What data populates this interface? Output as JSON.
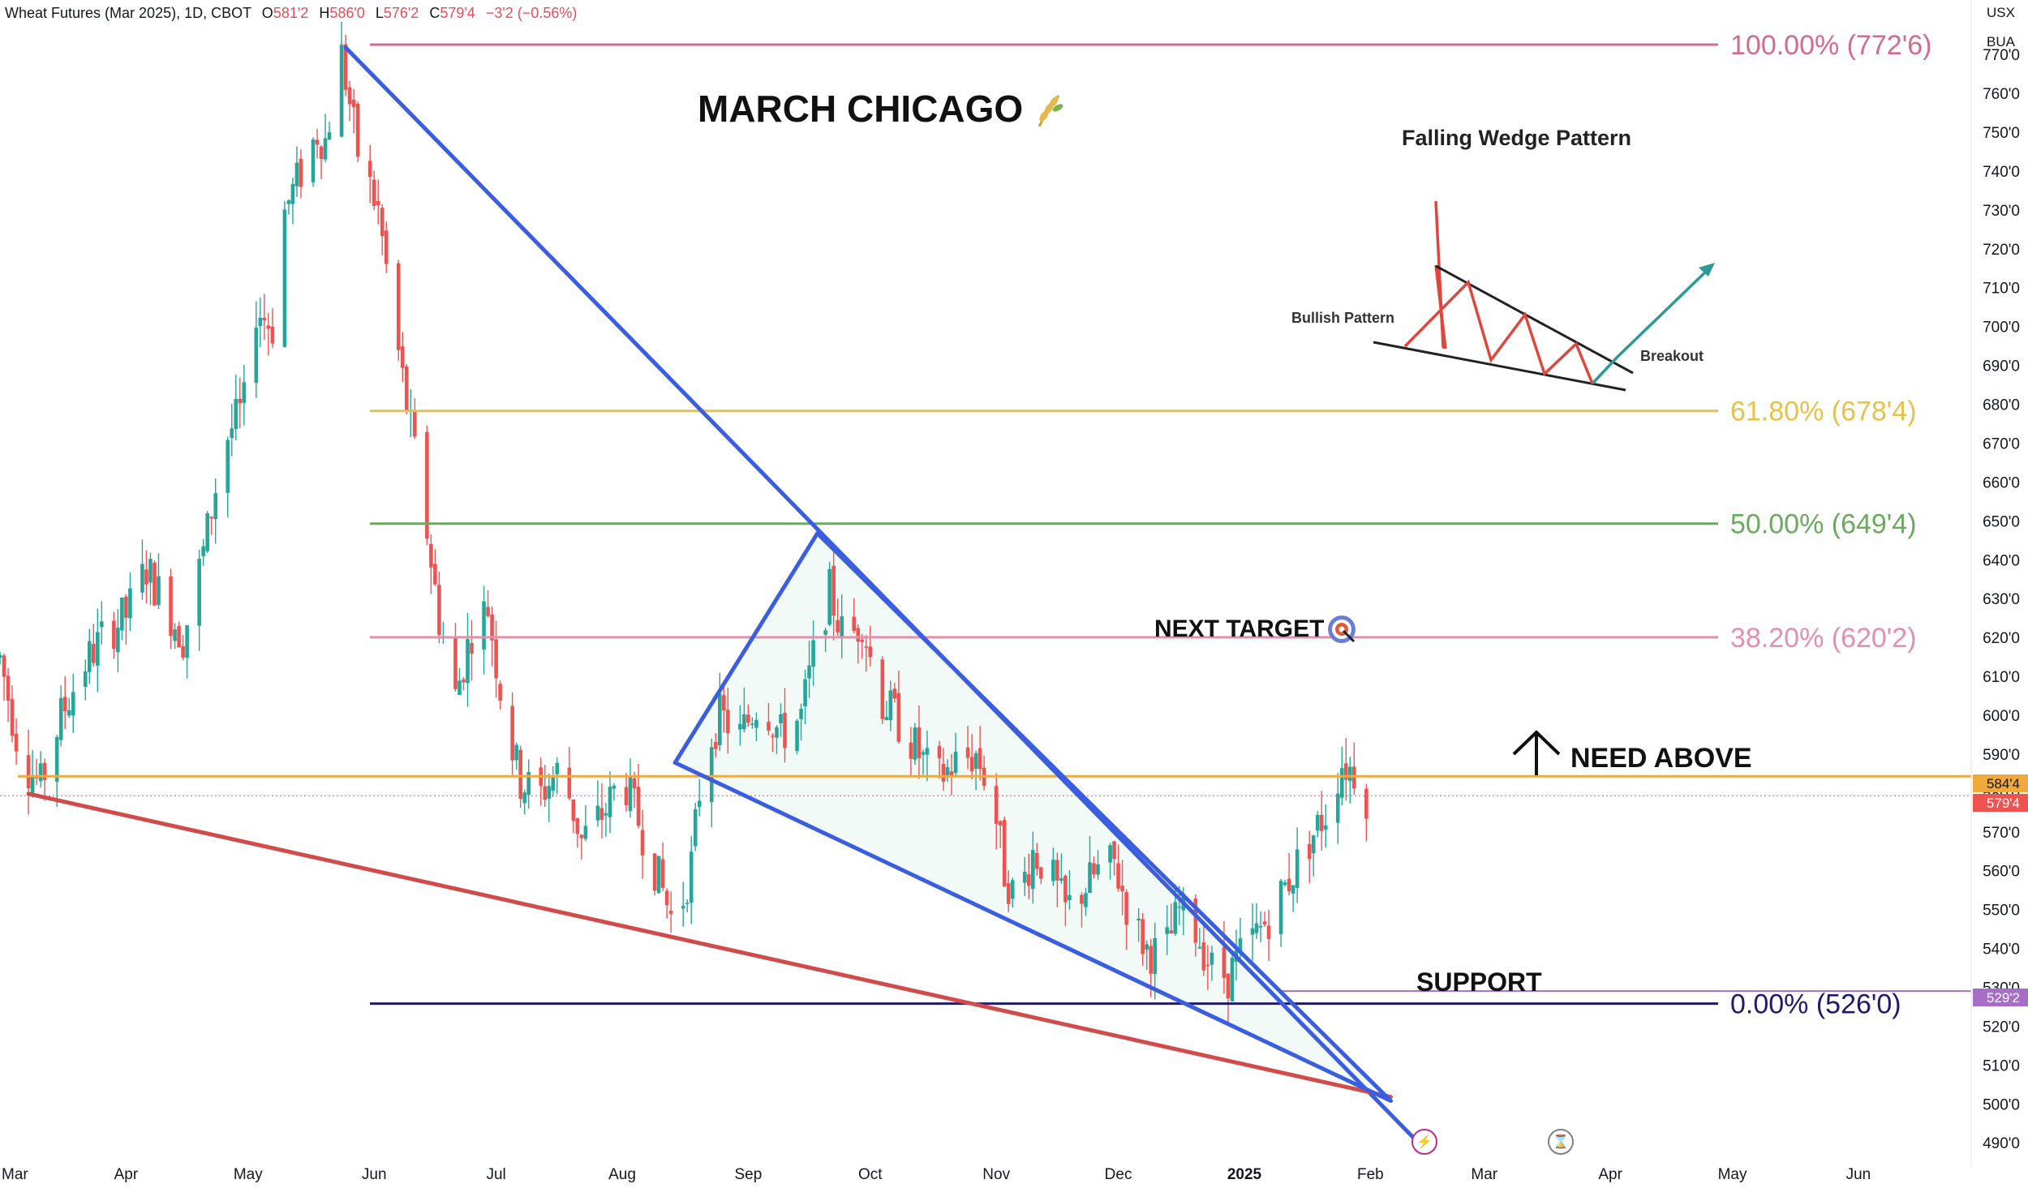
{
  "header": {
    "symbol_label": "Wheat Futures (Mar 2025), 1D, CBOT",
    "o_label": "O",
    "o_value": "581'2",
    "h_label": "H",
    "h_value": "586'0",
    "l_label": "L",
    "l_value": "576'2",
    "c_label": "C",
    "c_value": "579'4",
    "change": "−3'2 (−0.56%)"
  },
  "units": {
    "currency": "USX",
    "unit": "BUA"
  },
  "price_tags": {
    "level_tag": "584'4",
    "last_tag": "579'4",
    "support_tag": "529'2"
  },
  "annotations": {
    "title": "MARCH CHICAGO",
    "need_above": "NEED ABOVE",
    "next_target": "NEXT TARGET",
    "support": "SUPPORT",
    "inset_title": "Falling Wedge Pattern",
    "inset_bullish": "Bullish Pattern",
    "inset_breakout": "Breakout"
  },
  "colors": {
    "up": "#26a69a",
    "down": "#ef5350",
    "wedge_line": "#3b5ee0",
    "support_line": "#d24b4b",
    "fib_100": "#d46a8c",
    "fib_618": "#e6c24a",
    "fib_50": "#6aaa5e",
    "fib_382": "#e291ab",
    "fib_0": "#1f1a6b",
    "level_584": "#f2a93b",
    "support_529": "#a66ec8"
  },
  "chart_data": {
    "type": "candlestick",
    "ylim": [
      487,
      778
    ],
    "y_ticks": [
      "490'0",
      "500'0",
      "510'0",
      "520'0",
      "530'0",
      "540'0",
      "550'0",
      "560'0",
      "570'0",
      "580'0",
      "590'0",
      "600'0",
      "610'0",
      "620'0",
      "630'0",
      "640'0",
      "650'0",
      "660'0",
      "670'0",
      "680'0",
      "690'0",
      "700'0",
      "710'0",
      "720'0",
      "730'0",
      "740'0",
      "750'0",
      "760'0",
      "770'0"
    ],
    "y_tick_values": [
      490,
      500,
      510,
      520,
      530,
      540,
      550,
      560,
      570,
      580,
      590,
      600,
      610,
      620,
      630,
      640,
      650,
      660,
      670,
      680,
      690,
      700,
      710,
      720,
      730,
      740,
      750,
      760,
      770
    ],
    "x_ticks": [
      {
        "label": "Mar",
        "day": 0
      },
      {
        "label": "Apr",
        "day": 31
      },
      {
        "label": "May",
        "day": 61
      },
      {
        "label": "Jun",
        "day": 92
      },
      {
        "label": "Jul",
        "day": 122
      },
      {
        "label": "Aug",
        "day": 153
      },
      {
        "label": "Sep",
        "day": 184
      },
      {
        "label": "Oct",
        "day": 214
      },
      {
        "label": "Nov",
        "day": 245
      },
      {
        "label": "Dec",
        "day": 275
      },
      {
        "label": "2025",
        "day": 306
      },
      {
        "label": "Feb",
        "day": 337
      },
      {
        "label": "Mar",
        "day": 365
      },
      {
        "label": "Apr",
        "day": 396
      },
      {
        "label": "May",
        "day": 426
      },
      {
        "label": "Jun",
        "day": 457
      }
    ],
    "fib_levels": [
      {
        "label": "100.00% (772'6)",
        "price": 772.75,
        "color_key": "fib_100"
      },
      {
        "label": "61.80% (678'4)",
        "price": 678.5,
        "color_key": "fib_618"
      },
      {
        "label": "50.00% (649'4)",
        "price": 649.5,
        "color_key": "fib_50"
      },
      {
        "label": "38.20% (620'2)",
        "price": 620.25,
        "color_key": "fib_382"
      },
      {
        "label": "0.00% (526'0)",
        "price": 526.0,
        "color_key": "fib_0"
      }
    ],
    "key_levels": [
      {
        "name": "level-584",
        "price": 584.5,
        "color_key": "level_584"
      },
      {
        "name": "level-529",
        "price": 529.25,
        "color_key": "support_529"
      },
      {
        "name": "last-price",
        "price": 579.5,
        "color_key": "down"
      }
    ],
    "trendlines": [
      {
        "name": "upper-wedge-line",
        "color_key": "wedge_line",
        "from": {
          "day": 85,
          "price": 772
        },
        "to": {
          "day": 349,
          "price": 490
        }
      },
      {
        "name": "lower-support-line",
        "color_key": "support_line",
        "from": {
          "day": 7,
          "price": 580
        },
        "to": {
          "day": 342,
          "price": 502
        }
      },
      {
        "name": "inner-wedge-upper",
        "color_key": "wedge_line",
        "from": {
          "day": 201,
          "price": 647
        },
        "to": {
          "day": 342,
          "price": 501
        }
      },
      {
        "name": "inner-wedge-left",
        "color_key": "wedge_line",
        "from": {
          "day": 166,
          "price": 588
        },
        "to": {
          "day": 201,
          "price": 647
        }
      },
      {
        "name": "inner-wedge-lower",
        "color_key": "wedge_line",
        "from": {
          "day": 166,
          "price": 588
        },
        "to": {
          "day": 342,
          "price": 501
        }
      }
    ],
    "anchors": [
      {
        "day": 0,
        "price": 615
      },
      {
        "day": 5,
        "price": 590
      },
      {
        "day": 10,
        "price": 582
      },
      {
        "day": 15,
        "price": 600
      },
      {
        "day": 20,
        "price": 612
      },
      {
        "day": 25,
        "price": 620
      },
      {
        "day": 31,
        "price": 626
      },
      {
        "day": 36,
        "price": 638
      },
      {
        "day": 40,
        "price": 630
      },
      {
        "day": 45,
        "price": 620
      },
      {
        "day": 50,
        "price": 642
      },
      {
        "day": 55,
        "price": 670
      },
      {
        "day": 60,
        "price": 680
      },
      {
        "day": 63,
        "price": 705
      },
      {
        "day": 67,
        "price": 700
      },
      {
        "day": 70,
        "price": 730
      },
      {
        "day": 74,
        "price": 740
      },
      {
        "day": 78,
        "price": 750
      },
      {
        "day": 80,
        "price": 748
      },
      {
        "day": 84,
        "price": 770
      },
      {
        "day": 88,
        "price": 745
      },
      {
        "day": 93,
        "price": 730
      },
      {
        "day": 97,
        "price": 700
      },
      {
        "day": 100,
        "price": 680
      },
      {
        "day": 104,
        "price": 655
      },
      {
        "day": 108,
        "price": 625
      },
      {
        "day": 112,
        "price": 605
      },
      {
        "day": 116,
        "price": 622
      },
      {
        "day": 120,
        "price": 628
      },
      {
        "day": 124,
        "price": 600
      },
      {
        "day": 128,
        "price": 583
      },
      {
        "day": 133,
        "price": 580
      },
      {
        "day": 138,
        "price": 587
      },
      {
        "day": 143,
        "price": 568
      },
      {
        "day": 149,
        "price": 576
      },
      {
        "day": 153,
        "price": 585
      },
      {
        "day": 158,
        "price": 570
      },
      {
        "day": 163,
        "price": 555
      },
      {
        "day": 166,
        "price": 545
      },
      {
        "day": 170,
        "price": 562
      },
      {
        "day": 173,
        "price": 590
      },
      {
        "day": 177,
        "price": 600
      },
      {
        "day": 182,
        "price": 595
      },
      {
        "day": 187,
        "price": 605
      },
      {
        "day": 192,
        "price": 595
      },
      {
        "day": 197,
        "price": 600
      },
      {
        "day": 201,
        "price": 620
      },
      {
        "day": 204,
        "price": 632
      },
      {
        "day": 208,
        "price": 618
      },
      {
        "day": 212,
        "price": 625
      },
      {
        "day": 216,
        "price": 605
      },
      {
        "day": 220,
        "price": 600
      },
      {
        "day": 225,
        "price": 592
      },
      {
        "day": 230,
        "price": 583
      },
      {
        "day": 235,
        "price": 588
      },
      {
        "day": 240,
        "price": 590
      },
      {
        "day": 244,
        "price": 580
      },
      {
        "day": 247,
        "price": 560
      },
      {
        "day": 250,
        "price": 552
      },
      {
        "day": 254,
        "price": 565
      },
      {
        "day": 258,
        "price": 560
      },
      {
        "day": 262,
        "price": 550
      },
      {
        "day": 266,
        "price": 555
      },
      {
        "day": 270,
        "price": 560
      },
      {
        "day": 274,
        "price": 562
      },
      {
        "day": 278,
        "price": 548
      },
      {
        "day": 282,
        "price": 540
      },
      {
        "day": 286,
        "price": 538
      },
      {
        "day": 290,
        "price": 550
      },
      {
        "day": 294,
        "price": 545
      },
      {
        "day": 298,
        "price": 535
      },
      {
        "day": 302,
        "price": 533
      },
      {
        "day": 306,
        "price": 540
      },
      {
        "day": 310,
        "price": 545
      },
      {
        "day": 314,
        "price": 552
      },
      {
        "day": 318,
        "price": 560
      },
      {
        "day": 322,
        "price": 568
      },
      {
        "day": 326,
        "price": 575
      },
      {
        "day": 330,
        "price": 588
      },
      {
        "day": 334,
        "price": 585
      },
      {
        "day": 336,
        "price": 579.5
      }
    ]
  }
}
